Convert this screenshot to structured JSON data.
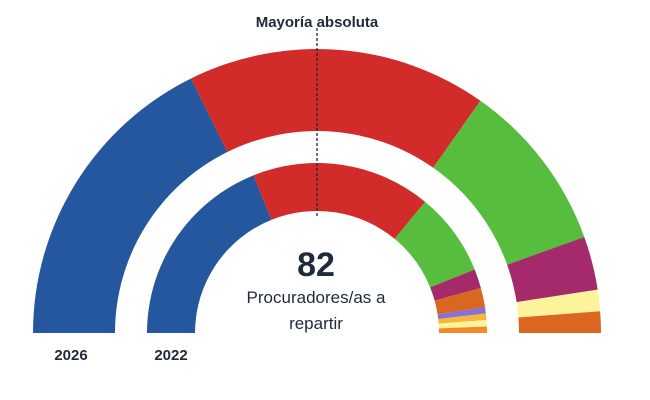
{
  "chart_data": {
    "type": "parliament-hemicycle",
    "total_seats": 82,
    "total_caption": "Procuradores/as a repartir",
    "majority_label": "Mayoría absoluta",
    "rings": [
      {
        "name": "2026",
        "parties": [
          {
            "color": "#24579e",
            "seats": 29
          },
          {
            "color": "#d12c2a",
            "seats": 28
          },
          {
            "color": "#57bd3f",
            "seats": 16
          },
          {
            "color": "#a52a6b",
            "seats": 5
          },
          {
            "color": "#fdf39b",
            "seats": 2
          },
          {
            "color": "#d9671f",
            "seats": 2
          }
        ]
      },
      {
        "name": "2022",
        "parties": [
          {
            "color": "#24579e",
            "seats": 31
          },
          {
            "color": "#d12c2a",
            "seats": 28
          },
          {
            "color": "#57bd3f",
            "seats": 13
          },
          {
            "color": "#a52a6b",
            "seats": 3
          },
          {
            "color": "#d9671f",
            "seats": 3
          },
          {
            "color": "#8a6fd6",
            "seats": 1
          },
          {
            "color": "#f5b73a",
            "seats": 1
          },
          {
            "color": "#fdf39b",
            "seats": 1
          },
          {
            "color": "#f08a2a",
            "seats": 1
          }
        ]
      }
    ]
  }
}
